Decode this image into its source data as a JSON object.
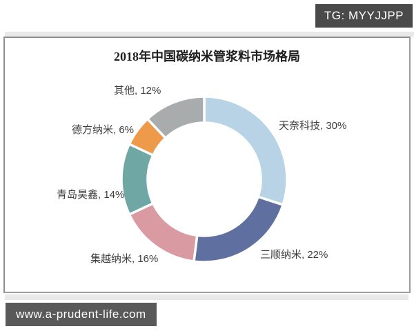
{
  "overlays": {
    "tg_badge": "TG: MYYJJPP",
    "watermark": "www.a-prudent-life.com"
  },
  "chart_data": {
    "type": "pie",
    "donut": true,
    "title": "2018年中国碳纳米管浆料市场格局",
    "start_angle_deg": 0,
    "direction": "clockwise",
    "legend_position": "none",
    "slices": [
      {
        "name": "天奈科技",
        "value": 30,
        "label": "天奈科技, 30%",
        "color": "#b7d3e5"
      },
      {
        "name": "三顺纳米",
        "value": 22,
        "label": "三顺纳米, 22%",
        "color": "#5f6fa0"
      },
      {
        "name": "集越纳米",
        "value": 16,
        "label": "集越纳米, 16%",
        "color": "#d99aa1"
      },
      {
        "name": "青岛昊鑫",
        "value": 14,
        "label": "青岛昊鑫, 14%",
        "color": "#6ea7a4"
      },
      {
        "name": "德方纳米",
        "value": 6,
        "label": "德方纳米, 6%",
        "color": "#ee9a4b"
      },
      {
        "name": "其他",
        "value": 12,
        "label": "其他, 12%",
        "color": "#a8acac"
      }
    ]
  }
}
